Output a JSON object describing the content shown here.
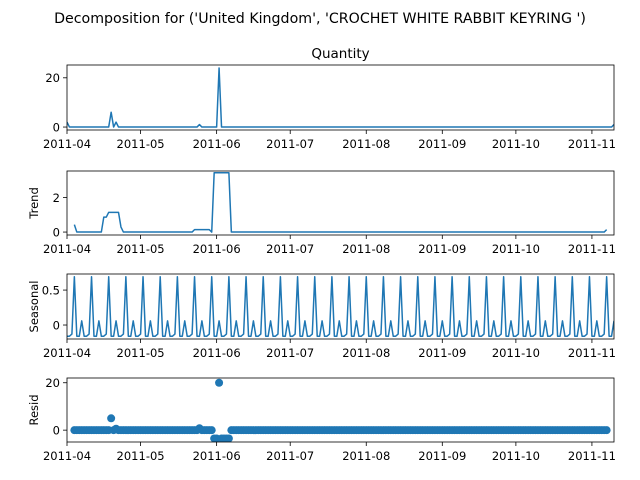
{
  "suptitle": "Decomposition for ('United Kingdom', 'CROCHET WHITE RABBIT KEYRING ')",
  "line_color": "#1f77b4",
  "x_tick_labels": [
    "2011-04",
    "2011-05",
    "2011-06",
    "2011-07",
    "2011-08",
    "2011-09",
    "2011-10",
    "2011-11"
  ],
  "chart_data": [
    {
      "type": "line",
      "title": "Quantity",
      "ylabel": "",
      "xlim": [
        "2011-04-01",
        "2011-11-10"
      ],
      "ylim": [
        -1.2,
        25.2
      ],
      "yticks": [
        0,
        20
      ],
      "xticks": [
        "2011-04-01",
        "2011-05-01",
        "2011-06-01",
        "2011-07-01",
        "2011-08-01",
        "2011-09-01",
        "2011-10-01",
        "2011-11-01"
      ],
      "default_y": 0,
      "x": [
        "2011-04-01",
        "2011-04-02",
        "2011-04-18",
        "2011-04-19",
        "2011-04-20",
        "2011-04-21",
        "2011-04-22",
        "2011-04-23",
        "2011-05-24",
        "2011-05-25",
        "2011-05-26",
        "2011-06-01",
        "2011-06-02",
        "2011-06-03",
        "2011-11-09",
        "2011-11-10"
      ],
      "y": [
        2,
        0,
        0,
        6,
        0,
        2,
        0,
        0,
        0,
        1,
        0,
        0,
        24,
        0,
        0,
        1
      ]
    },
    {
      "type": "line",
      "title": "",
      "ylabel": "Trend",
      "xlim": [
        "2011-04-01",
        "2011-11-10"
      ],
      "ylim": [
        -0.17,
        3.53
      ],
      "yticks": [
        0,
        2
      ],
      "xticks": [
        "2011-04-01",
        "2011-05-01",
        "2011-06-01",
        "2011-07-01",
        "2011-08-01",
        "2011-09-01",
        "2011-10-01",
        "2011-11-01"
      ],
      "x": [
        "2011-04-04",
        "2011-04-05",
        "2011-04-15",
        "2011-04-16",
        "2011-04-17",
        "2011-04-18",
        "2011-04-22",
        "2011-04-23",
        "2011-04-24",
        "2011-05-22",
        "2011-05-23",
        "2011-05-29",
        "2011-05-30",
        "2011-05-31",
        "2011-06-06",
        "2011-06-07",
        "2011-11-06",
        "2011-11-07"
      ],
      "y": [
        0.43,
        0,
        0,
        0.86,
        0.86,
        1.14,
        1.14,
        0.29,
        0,
        0,
        0.14,
        0.14,
        0,
        3.43,
        3.43,
        0,
        0,
        0.14
      ]
    },
    {
      "type": "line",
      "title": "",
      "ylabel": "Seasonal",
      "xlim": [
        "2011-04-01",
        "2011-11-10"
      ],
      "ylim": [
        -0.2,
        0.73
      ],
      "yticks": [
        0,
        0.5
      ],
      "xticks": [
        "2011-04-01",
        "2011-05-01",
        "2011-06-01",
        "2011-07-01",
        "2011-08-01",
        "2011-09-01",
        "2011-10-01",
        "2011-11-01"
      ],
      "period_start": "2011-04-04",
      "period_values": [
        0.69,
        -0.16,
        -0.16,
        0.06,
        -0.16,
        -0.16,
        -0.13
      ],
      "range": [
        "2011-04-01",
        "2011-11-10"
      ]
    },
    {
      "type": "scatter",
      "title": "",
      "ylabel": "Resid",
      "xlim": [
        "2011-04-01",
        "2011-11-10"
      ],
      "ylim": [
        -5,
        22
      ],
      "yticks": [
        0,
        20
      ],
      "xticks": [
        "2011-04-01",
        "2011-05-01",
        "2011-06-01",
        "2011-07-01",
        "2011-08-01",
        "2011-09-01",
        "2011-10-01",
        "2011-11-01"
      ],
      "baseline": "2011-04-04 to 2011-11-07 daily, value 0 unless listed",
      "overrides": [
        {
          "x": "2011-04-19",
          "y": 5
        },
        {
          "x": "2011-04-21",
          "y": 0.6
        },
        {
          "x": "2011-05-25",
          "y": 0.8
        },
        {
          "x": "2011-05-31",
          "y": -3.5
        },
        {
          "x": "2011-06-01",
          "y": -3.5
        },
        {
          "x": "2011-06-02",
          "y": 20
        },
        {
          "x": "2011-06-03",
          "y": -3.5
        },
        {
          "x": "2011-06-04",
          "y": -3.5
        },
        {
          "x": "2011-06-05",
          "y": -3.5
        },
        {
          "x": "2011-06-06",
          "y": -3.5
        }
      ]
    }
  ]
}
